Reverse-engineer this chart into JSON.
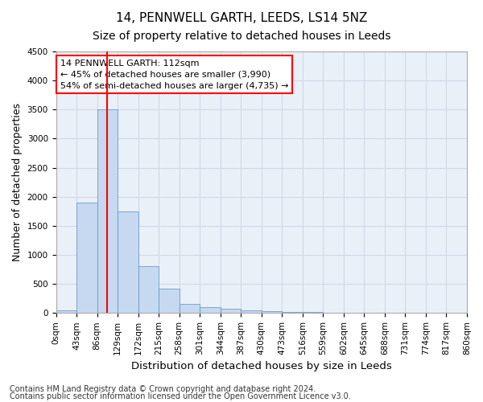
{
  "title": "14, PENNWELL GARTH, LEEDS, LS14 5NZ",
  "subtitle": "Size of property relative to detached houses in Leeds",
  "xlabel": "Distribution of detached houses by size in Leeds",
  "ylabel": "Number of detached properties",
  "annotation_line1": "14 PENNWELL GARTH: 112sqm",
  "annotation_line2": "← 45% of detached houses are smaller (3,990)",
  "annotation_line3": "54% of semi-detached houses are larger (4,735) →",
  "footer_line1": "Contains HM Land Registry data © Crown copyright and database right 2024.",
  "footer_line2": "Contains public sector information licensed under the Open Government Licence v3.0.",
  "bar_values": [
    50,
    1900,
    3500,
    1750,
    800,
    425,
    150,
    100,
    75,
    50,
    30,
    20,
    15,
    10,
    8,
    5,
    4,
    3,
    2
  ],
  "bin_labels": [
    "0sqm",
    "43sqm",
    "86sqm",
    "129sqm",
    "172sqm",
    "215sqm",
    "258sqm",
    "301sqm",
    "344sqm",
    "387sqm",
    "430sqm",
    "473sqm",
    "516sqm",
    "559sqm",
    "602sqm",
    "645sqm",
    "688sqm",
    "731sqm",
    "774sqm",
    "817sqm",
    "860sqm"
  ],
  "bar_color": "#c6d9f0",
  "bar_edge_color": "#5a8fc2",
  "red_line_x": 2.5,
  "ylim": [
    0,
    4500
  ],
  "yticks": [
    0,
    500,
    1000,
    1500,
    2000,
    2500,
    3000,
    3500,
    4000,
    4500
  ],
  "grid_color": "#d0d8e8",
  "background_color": "#eaf0f8",
  "annotation_box_color": "white",
  "annotation_box_edge": "red",
  "red_line_color": "red",
  "title_fontsize": 11,
  "subtitle_fontsize": 10,
  "axis_label_fontsize": 9,
  "tick_fontsize": 7.5,
  "annotation_fontsize": 8,
  "footer_fontsize": 7
}
